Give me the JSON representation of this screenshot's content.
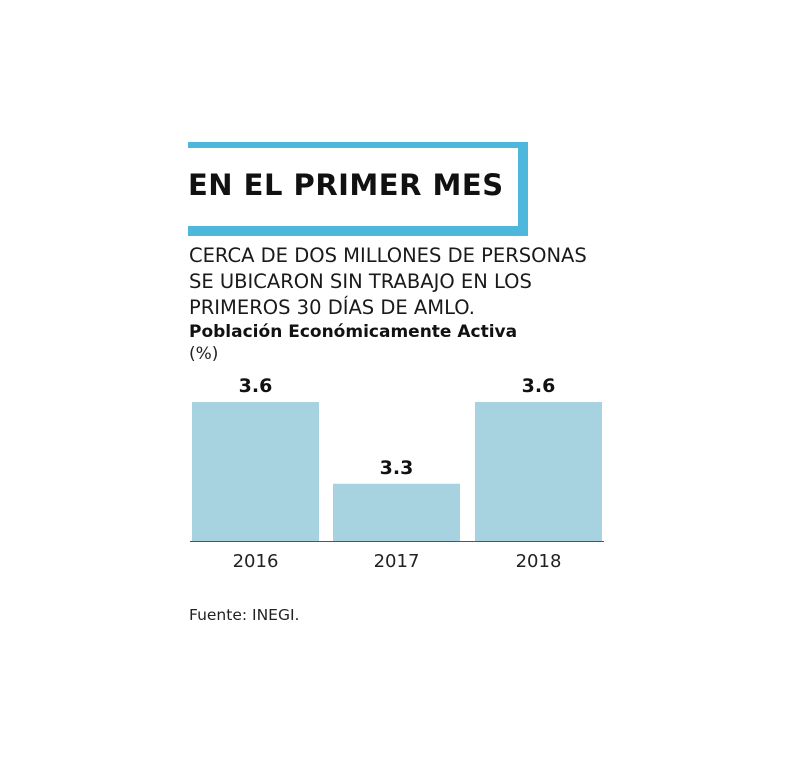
{
  "header": {
    "title": "EN EL PRIMER MES",
    "subtitle_lines": [
      "CERCA DE DOS MILLONES DE PERSONAS",
      "SE UBICARON SIN TRABAJO EN LOS",
      "PRIMEROS 30 DÍAS DE AMLO."
    ]
  },
  "colors": {
    "accent": "#4DB8DC",
    "bar": "#A7D3E0",
    "axis": "#555555",
    "text": "#111111"
  },
  "chart_data": {
    "type": "bar",
    "title": "Población Económicamente Activa",
    "ylabel": "(%)",
    "categories": [
      "2016",
      "2017",
      "2018"
    ],
    "values": [
      3.6,
      3.3,
      3.6
    ],
    "data_labels": [
      "3.6",
      "3.3",
      "3.6"
    ],
    "ylim": [
      3.2,
      3.6
    ],
    "grid": false,
    "legend": "none"
  },
  "footer": {
    "source": "Fuente: INEGI."
  }
}
